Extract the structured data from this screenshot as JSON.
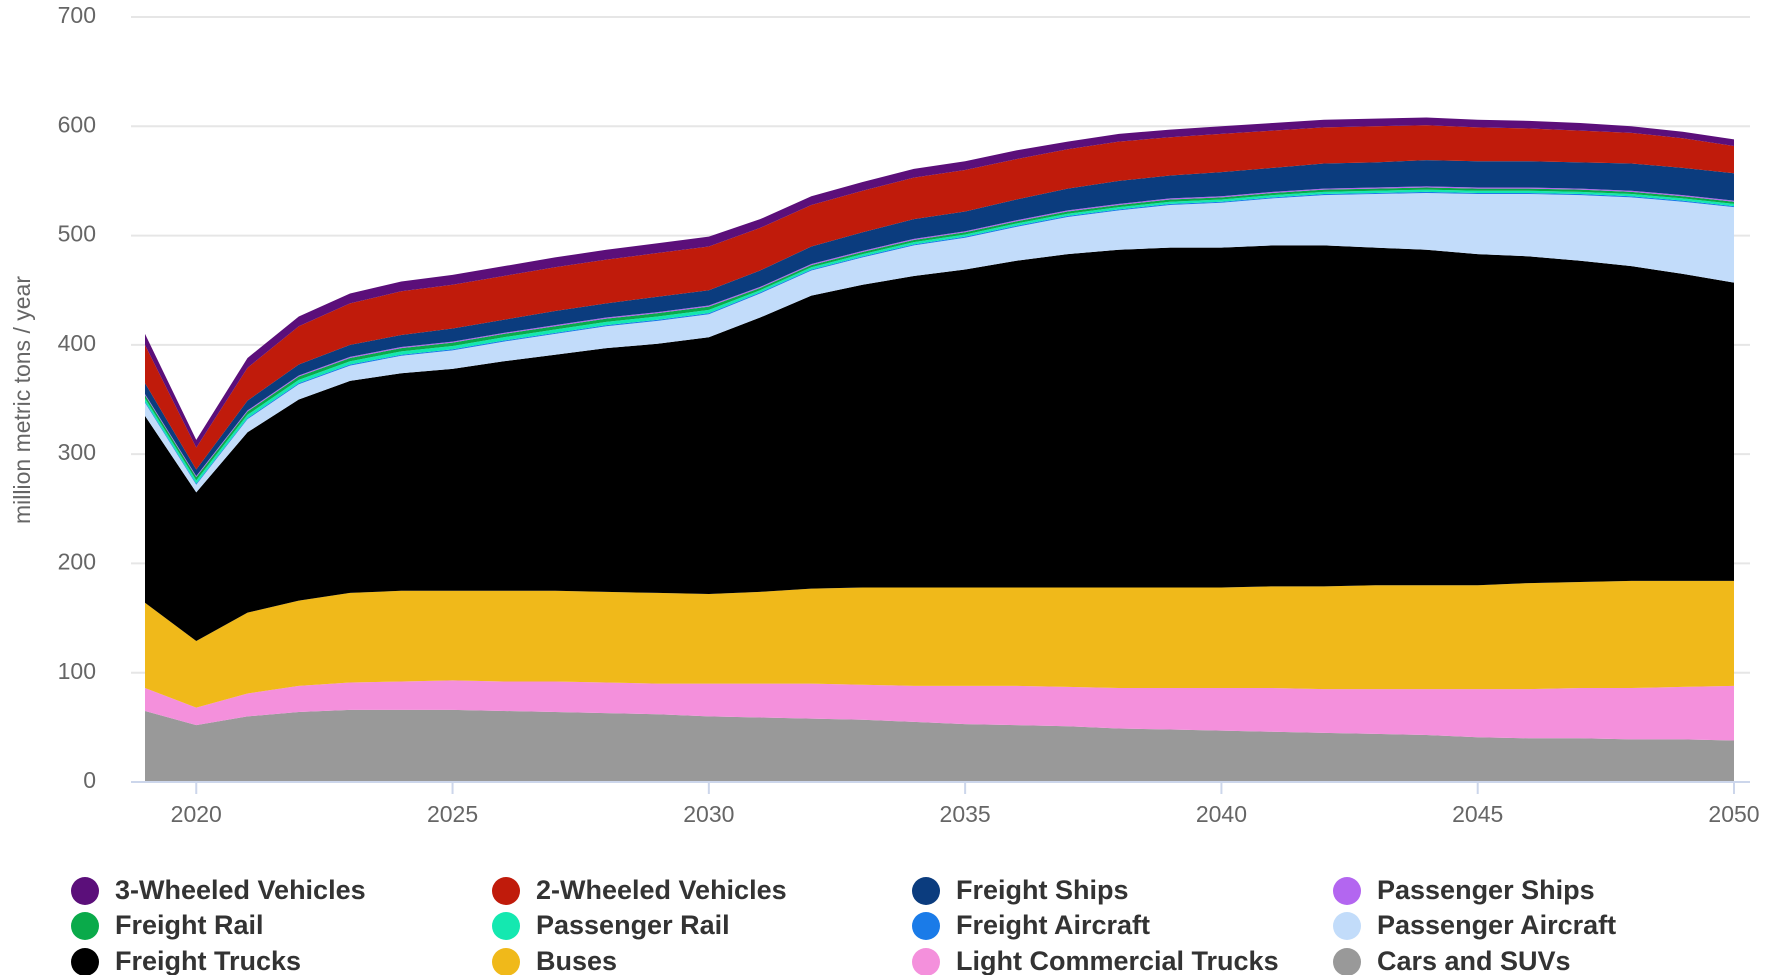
{
  "chart_data": {
    "type": "stacked-area",
    "y_label": "million metric tons / year",
    "x": [
      2019,
      2020,
      2021,
      2022,
      2023,
      2024,
      2025,
      2026,
      2027,
      2028,
      2029,
      2030,
      2031,
      2032,
      2033,
      2034,
      2035,
      2036,
      2037,
      2038,
      2039,
      2040,
      2041,
      2042,
      2043,
      2044,
      2045,
      2046,
      2047,
      2048,
      2049,
      2050
    ],
    "xlim": [
      2019,
      2050
    ],
    "xticks": [
      2020,
      2025,
      2030,
      2035,
      2040,
      2045,
      2050
    ],
    "ylim": [
      0,
      700
    ],
    "yticks": [
      0,
      100,
      200,
      300,
      400,
      500,
      600,
      700
    ],
    "grid": true,
    "series": [
      {
        "name": "3-Wheeled Vehicles",
        "color": "#5b0f7a",
        "values": [
          10,
          7,
          9,
          9,
          9,
          9,
          9,
          9,
          9,
          9,
          9,
          9,
          8,
          8,
          8,
          8,
          8,
          8,
          7,
          7,
          7,
          7,
          7,
          7,
          7,
          7,
          7,
          7,
          7,
          6,
          6,
          6
        ]
      },
      {
        "name": "2-Wheeled Vehicles",
        "color": "#c01b0b",
        "values": [
          35,
          20,
          30,
          35,
          38,
          40,
          40,
          40,
          40,
          40,
          40,
          40,
          39,
          38,
          38,
          38,
          38,
          37,
          36,
          36,
          35,
          35,
          34,
          33,
          33,
          32,
          31,
          30,
          29,
          28,
          27,
          25
        ]
      },
      {
        "name": "Freight Ships",
        "color": "#0b3c7e",
        "values": [
          10,
          6,
          9,
          10,
          11,
          11,
          12,
          12,
          13,
          13,
          14,
          14,
          15,
          16,
          17,
          18,
          18,
          19,
          20,
          21,
          21,
          22,
          22,
          23,
          23,
          24,
          24,
          24,
          24,
          25,
          25,
          25
        ]
      },
      {
        "name": "Passenger Ships",
        "color": "#b366f0",
        "values": [
          1,
          1,
          1,
          1,
          1,
          1,
          1,
          1,
          1,
          1,
          1,
          1,
          1,
          1,
          1,
          1,
          1,
          1,
          1,
          1,
          1,
          1,
          1,
          1,
          1,
          1,
          1,
          1,
          1,
          1,
          1,
          1
        ]
      },
      {
        "name": "Freight Rail",
        "color": "#0aaa4a",
        "values": [
          3,
          3,
          3,
          3,
          3,
          3,
          3,
          3,
          3,
          3,
          3,
          3,
          2,
          2,
          2,
          2,
          2,
          2,
          2,
          2,
          2,
          2,
          2,
          2,
          2,
          2,
          2,
          2,
          2,
          2,
          2,
          2
        ]
      },
      {
        "name": "Passenger Rail",
        "color": "#14e8b0",
        "values": [
          3,
          3,
          3,
          3,
          3,
          3,
          3,
          3,
          3,
          3,
          3,
          3,
          2,
          2,
          2,
          2,
          2,
          2,
          2,
          2,
          2,
          2,
          2,
          2,
          2,
          2,
          2,
          2,
          2,
          2,
          2,
          2
        ]
      },
      {
        "name": "Freight Aircraft",
        "color": "#1a7be8",
        "values": [
          1,
          1,
          1,
          1,
          1,
          1,
          1,
          1,
          1,
          1,
          1,
          1,
          1,
          1,
          1,
          1,
          1,
          1,
          1,
          1,
          1,
          1,
          1,
          1,
          1,
          1,
          1,
          1,
          1,
          1,
          1,
          1
        ]
      },
      {
        "name": "Passenger Aircraft",
        "color": "#c2dcfa",
        "values": [
          12,
          7,
          12,
          14,
          14,
          16,
          17,
          18,
          19,
          20,
          21,
          21,
          22,
          23,
          25,
          28,
          29,
          31,
          34,
          36,
          39,
          41,
          43,
          46,
          49,
          52,
          55,
          57,
          60,
          63,
          66,
          69
        ]
      },
      {
        "name": "Freight Trucks",
        "color": "#000000",
        "values": [
          171,
          136,
          165,
          184,
          194,
          199,
          203,
          210,
          216,
          223,
          228,
          235,
          251,
          268,
          277,
          285,
          291,
          299,
          305,
          309,
          311,
          311,
          312,
          312,
          309,
          307,
          303,
          299,
          294,
          288,
          281,
          273
        ]
      },
      {
        "name": "Buses",
        "color": "#f0b91a",
        "values": [
          78,
          61,
          74,
          78,
          82,
          83,
          82,
          83,
          83,
          83,
          83,
          82,
          84,
          87,
          89,
          90,
          90,
          90,
          91,
          92,
          92,
          92,
          93,
          94,
          95,
          95,
          95,
          97,
          97,
          98,
          97,
          96
        ]
      },
      {
        "name": "Light Commercial Trucks",
        "color": "#f490dc",
        "values": [
          21,
          16,
          21,
          24,
          25,
          26,
          27,
          27,
          28,
          28,
          28,
          30,
          31,
          32,
          32,
          33,
          35,
          36,
          36,
          37,
          38,
          39,
          40,
          40,
          41,
          42,
          44,
          45,
          46,
          47,
          48,
          50
        ]
      },
      {
        "name": "Cars and SUVs",
        "color": "#999999",
        "values": [
          65,
          52,
          60,
          64,
          66,
          66,
          66,
          65,
          64,
          63,
          62,
          60,
          59,
          58,
          57,
          55,
          53,
          52,
          51,
          49,
          48,
          47,
          46,
          45,
          44,
          43,
          41,
          40,
          40,
          39,
          39,
          38
        ]
      }
    ]
  }
}
